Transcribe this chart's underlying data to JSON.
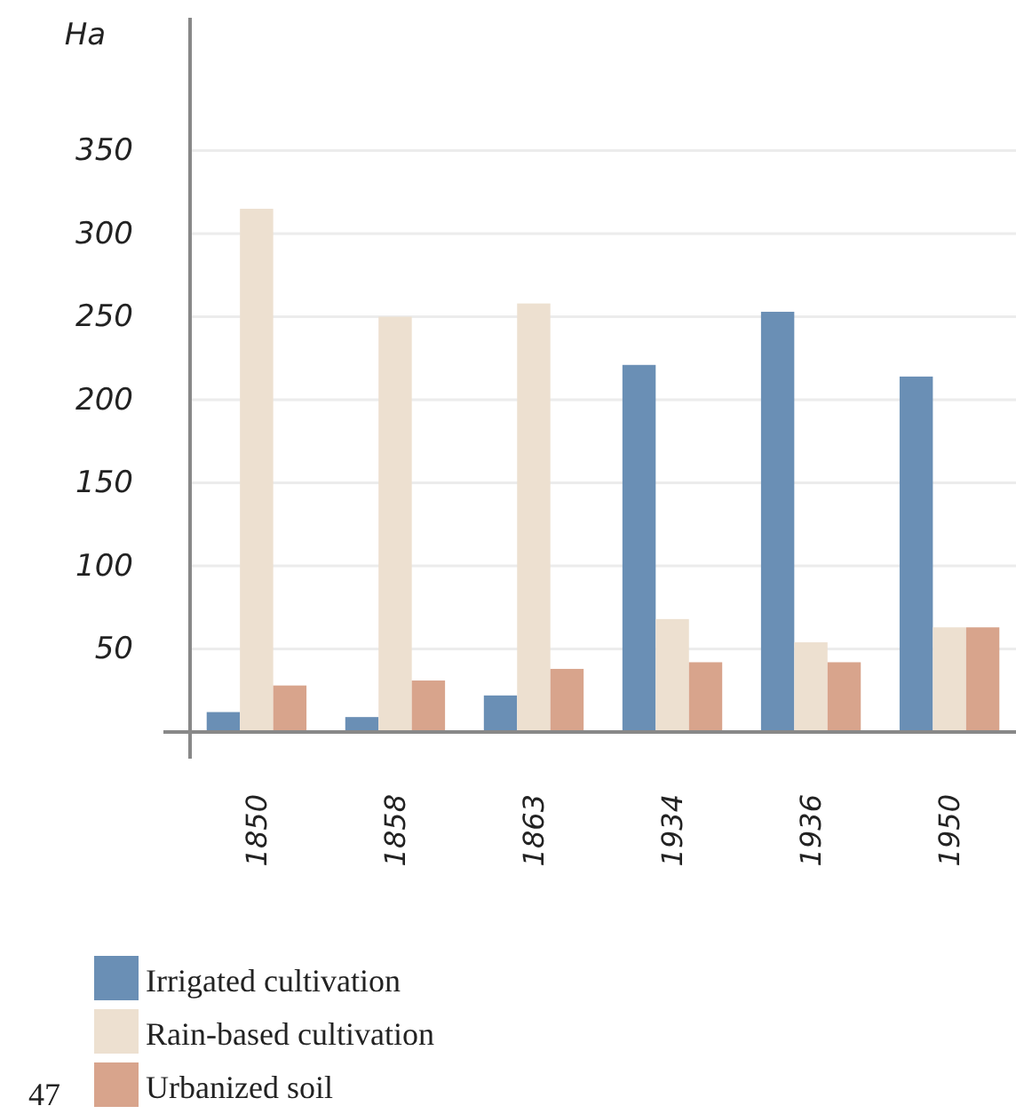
{
  "chart_data": {
    "type": "bar",
    "ylabel": "Ha",
    "categories": [
      "1850",
      "1858",
      "1863",
      "1934",
      "1936",
      "1950"
    ],
    "series": [
      {
        "name": "Irrigated cultivation",
        "color": "#6a8fb5",
        "values": [
          12,
          9,
          22,
          221,
          253,
          214
        ]
      },
      {
        "name": "Rain-based cultivation",
        "color": "#ede0d0",
        "values": [
          315,
          250,
          258,
          68,
          54,
          63
        ]
      },
      {
        "name": "Urbanized soil",
        "color": "#d8a48c",
        "values": [
          28,
          31,
          38,
          42,
          42,
          63
        ]
      }
    ],
    "ylim": [
      0,
      430
    ],
    "yticks": [
      50,
      100,
      150,
      200,
      250,
      300,
      350
    ],
    "grid": "y",
    "legend": "bottom",
    "annotations": [
      "47"
    ]
  }
}
